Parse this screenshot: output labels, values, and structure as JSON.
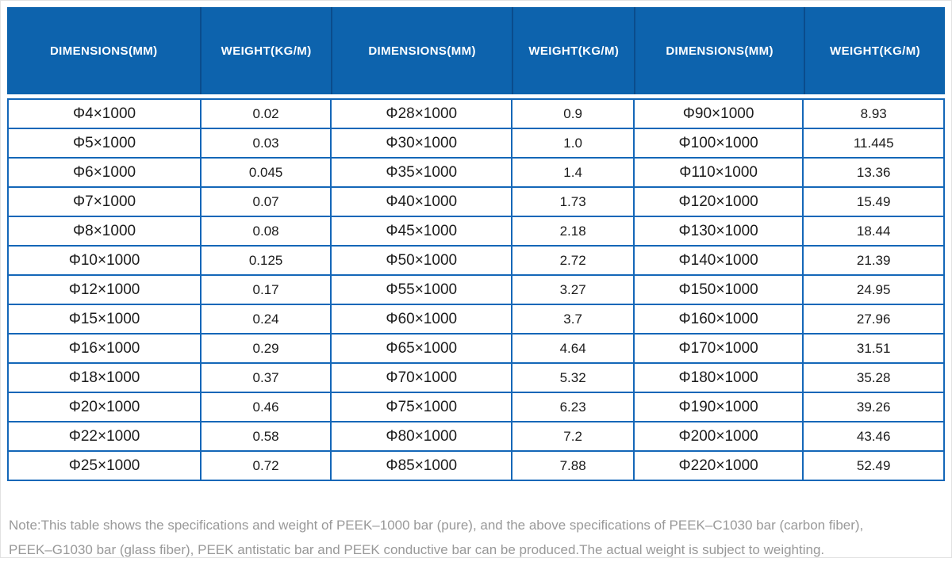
{
  "table": {
    "headers": [
      "DIMENSIONS(MM)",
      "WEIGHT(KG/M)",
      "DIMENSIONS(MM)",
      "WEIGHT(KG/M)",
      "DIMENSIONS(MM)",
      "WEIGHT(KG/M)"
    ],
    "rows": [
      [
        "Φ4×1000",
        "0.02",
        "Φ28×1000",
        "0.9",
        "Φ90×1000",
        "8.93"
      ],
      [
        "Φ5×1000",
        "0.03",
        "Φ30×1000",
        "1.0",
        "Φ100×1000",
        "11.445"
      ],
      [
        "Φ6×1000",
        "0.045",
        "Φ35×1000",
        "1.4",
        "Φ110×1000",
        "13.36"
      ],
      [
        "Φ7×1000",
        "0.07",
        "Φ40×1000",
        "1.73",
        "Φ120×1000",
        "15.49"
      ],
      [
        "Φ8×1000",
        "0.08",
        "Φ45×1000",
        "2.18",
        "Φ130×1000",
        "18.44"
      ],
      [
        "Φ10×1000",
        "0.125",
        "Φ50×1000",
        "2.72",
        "Φ140×1000",
        "21.39"
      ],
      [
        "Φ12×1000",
        "0.17",
        "Φ55×1000",
        "3.27",
        "Φ150×1000",
        "24.95"
      ],
      [
        "Φ15×1000",
        "0.24",
        "Φ60×1000",
        "3.7",
        "Φ160×1000",
        "27.96"
      ],
      [
        "Φ16×1000",
        "0.29",
        "Φ65×1000",
        "4.64",
        "Φ170×1000",
        "31.51"
      ],
      [
        "Φ18×1000",
        "0.37",
        "Φ70×1000",
        "5.32",
        "Φ180×1000",
        "35.28"
      ],
      [
        "Φ20×1000",
        "0.46",
        "Φ75×1000",
        "6.23",
        "Φ190×1000",
        "39.26"
      ],
      [
        "Φ22×1000",
        "0.58",
        "Φ80×1000",
        "7.2",
        "Φ200×1000",
        "43.46"
      ],
      [
        "Φ25×1000",
        "0.72",
        "Φ85×1000",
        "7.88",
        "Φ220×1000",
        "52.49"
      ]
    ]
  },
  "note_lines": [
    "Note:This table shows the specifications and weight of PEEK–1000 bar (pure), and the above specifications of PEEK–C1030 bar (carbon fiber),",
    "PEEK–G1030 bar (glass fiber), PEEK antistatic bar and PEEK conductive bar can be produced.The actual weight is subject to weighting."
  ],
  "colors": {
    "header_bg": "#0d63ad",
    "header_divider": "#0a4c8c",
    "grid_border": "#1467b8",
    "cell_text": "#1c1c1c",
    "note_text": "#999999",
    "outer_border": "#e2e2e2"
  }
}
